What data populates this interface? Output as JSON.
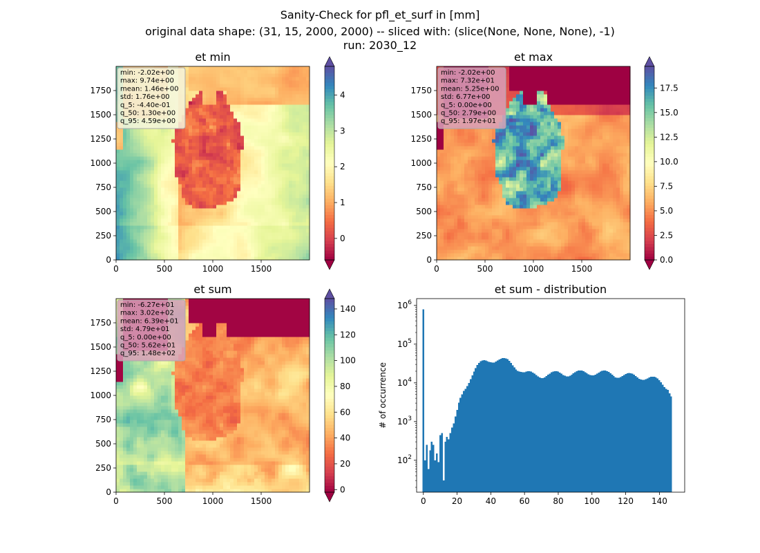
{
  "figure": {
    "suptitle_lines": [
      "Sanity-Check for pfl_et_surf in [mm]",
      "original data shape: (31, 15, 2000, 2000) -- sliced with: (slice(None, None, None), -1)",
      "run: 2030_12"
    ]
  },
  "colors": {
    "spectral_stops": [
      "#9e0142",
      "#d53e4f",
      "#f46d43",
      "#fdae61",
      "#fee08b",
      "#ffffbf",
      "#e6f598",
      "#abdda4",
      "#66c2a5",
      "#3288bd",
      "#5e4fa2"
    ],
    "hist_bar": "#1f77b4",
    "stats_box_bg": "#d8a0b8",
    "stats_box_border": "#aaaaaa"
  },
  "chart_data": [
    {
      "type": "heatmap",
      "title": "et min",
      "colormap": "Spectral",
      "xlim": [
        0,
        2000
      ],
      "ylim": [
        0,
        2000
      ],
      "xticks": [
        0,
        500,
        1000,
        1500
      ],
      "yticks": [
        0,
        250,
        500,
        750,
        1000,
        1250,
        1500,
        1750
      ],
      "colorbar": {
        "vmin": -0.6,
        "vmax": 4.8,
        "ticks": [
          0,
          1,
          2,
          3,
          4
        ],
        "extend": "both",
        "tick_labels": [
          "0",
          "1",
          "2",
          "3",
          "4"
        ]
      },
      "stats": [
        "min: -2.02e+00",
        "max: 9.74e+00",
        "mean: 1.46e+00",
        "std: 1.76e+00",
        "q_5: -4.40e-01",
        "q_50: 1.30e+00",
        "q_95: 4.59e+00"
      ],
      "stats_box_bg": "#f4f4dc"
    },
    {
      "type": "heatmap",
      "title": "et max",
      "colormap": "Spectral",
      "xlim": [
        0,
        2000
      ],
      "ylim": [
        0,
        2000
      ],
      "xticks": [
        0,
        500,
        1000,
        1500
      ],
      "yticks": [
        0,
        250,
        500,
        750,
        1000,
        1250,
        1500,
        1750
      ],
      "colorbar": {
        "vmin": 0,
        "vmax": 19.7,
        "ticks": [
          0,
          2.5,
          5,
          7.5,
          10,
          12.5,
          15,
          17.5
        ],
        "extend": "both",
        "tick_labels": [
          "0.0",
          "2.5",
          "5.0",
          "7.5",
          "10.0",
          "12.5",
          "15.0",
          "17.5"
        ]
      },
      "stats": [
        "min: -2.02e+00",
        "max: 7.32e+01",
        "mean: 5.25e+00",
        "std: 6.77e+00",
        "q_5: 0.00e+00",
        "q_50: 2.79e+00",
        "q_95: 1.97e+01"
      ],
      "stats_box_bg": "#d8a0b8"
    },
    {
      "type": "heatmap",
      "title": "et sum",
      "colormap": "Spectral",
      "xlim": [
        0,
        2000
      ],
      "ylim": [
        0,
        2000
      ],
      "xticks": [
        0,
        500,
        1000,
        1500
      ],
      "yticks": [
        0,
        250,
        500,
        750,
        1000,
        1250,
        1500,
        1750
      ],
      "colorbar": {
        "vmin": -2,
        "vmax": 148,
        "ticks": [
          0,
          20,
          40,
          60,
          80,
          100,
          120,
          140
        ],
        "extend": "both",
        "tick_labels": [
          "0",
          "20",
          "40",
          "60",
          "80",
          "100",
          "120",
          "140"
        ]
      },
      "stats": [
        "min: -6.27e+01",
        "max: 3.02e+02",
        "mean: 6.39e+01",
        "std: 4.79e+01",
        "q_5: 0.00e+00",
        "q_50: 5.62e+01",
        "q_95: 1.48e+02"
      ],
      "stats_box_bg": "#d8a0b8"
    },
    {
      "type": "bar",
      "title": "et sum - distribution",
      "ylabel": "# of occurrence",
      "xlabel": "",
      "yscale": "log",
      "xlim": [
        -4,
        155
      ],
      "ylim": [
        15,
        1500000
      ],
      "xticks": [
        0,
        20,
        40,
        60,
        80,
        100,
        120,
        140
      ],
      "yticks": [
        100,
        1000,
        10000,
        100000,
        1000000
      ],
      "ytick_labels": [
        "10^2",
        "10^3",
        "10^4",
        "10^5",
        "10^6"
      ],
      "bin_width": 1,
      "spikes": [
        {
          "x": 0,
          "value": 800000
        }
      ],
      "anchors_x": [
        1,
        2,
        3,
        4,
        5,
        6,
        7,
        8,
        9,
        10,
        11,
        12,
        13,
        14,
        15,
        16,
        17,
        18,
        20,
        22,
        24,
        26,
        28,
        30,
        32,
        34,
        36,
        38,
        40,
        42,
        44,
        46,
        48,
        50,
        52,
        55,
        60,
        65,
        70,
        75,
        80,
        85,
        90,
        95,
        100,
        105,
        110,
        115,
        120,
        125,
        130,
        135,
        140,
        145,
        147
      ],
      "anchors_y": [
        100,
        250,
        60,
        180,
        300,
        250,
        100,
        150,
        90,
        450,
        500,
        30,
        300,
        400,
        350,
        500,
        700,
        900,
        2000,
        4000,
        7000,
        10000,
        14000,
        19000,
        25000,
        31000,
        36000,
        39000,
        41000,
        40000,
        39000,
        38000,
        37000,
        36000,
        33000,
        27000,
        18000,
        16500,
        16000,
        16500,
        17500,
        18000,
        17500,
        18000,
        19000,
        18000,
        17500,
        16500,
        15500,
        15000,
        14500,
        13000,
        11000,
        8000,
        5000
      ]
    }
  ]
}
